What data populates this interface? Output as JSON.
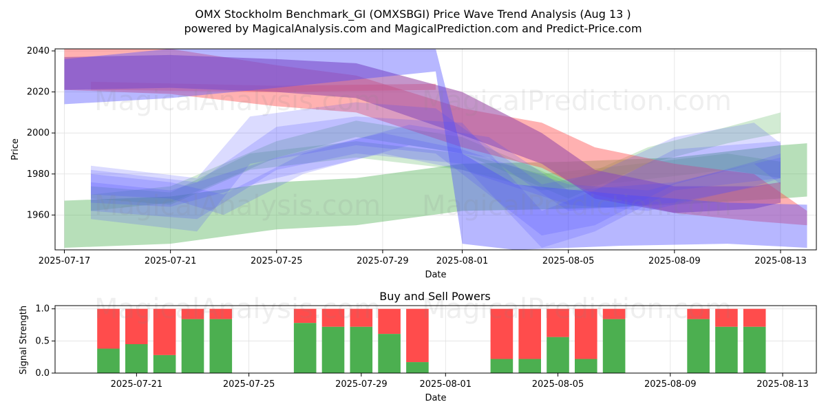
{
  "header": {
    "title": "OMX Stockholm Benchmark_GI (OMXSBGI) Price Wave Trend Analysis (Aug 13 )",
    "subtitle": "powered by MagicalAnalysis.com and MagicalPrediction.com and Predict-Price.com"
  },
  "watermarks": {
    "top_left": "MagicalAnalysis.com",
    "top_right": "MagicalPrediction.com",
    "mid_left": "MagicalAnalysis.com",
    "mid_right": "MagicalPrediction.com",
    "bottom_left": "MagicalAnalysis.com",
    "bottom_right": "MagicalPrediction.com"
  },
  "colors": {
    "green_band": "#4caf50",
    "red_band": "#ff5252",
    "blue_band": "#4b4bff",
    "purple_band": "#9c4fa6",
    "buy": "#4caf50",
    "sell": "#ff4c4c"
  },
  "chart_data": [
    {
      "type": "area",
      "title": "",
      "xlabel": "Date",
      "ylabel": "Price",
      "xlim": [
        "2025-07-17",
        "2025-08-14"
      ],
      "ylim": [
        1943,
        2041
      ],
      "x_ticks": [
        "2025-07-17",
        "2025-07-21",
        "2025-07-25",
        "2025-07-29",
        "2025-08-01",
        "2025-08-05",
        "2025-08-09",
        "2025-08-13"
      ],
      "y_ticks": [
        1960,
        1980,
        2000,
        2020,
        2040
      ],
      "grid": true,
      "series": [
        {
          "color": "green",
          "opacity": 0.4,
          "points": [
            [
              "2025-07-17",
              1944,
              1967
            ],
            [
              "2025-07-21",
              1946,
              1969
            ],
            [
              "2025-07-25",
              1953,
              1976
            ],
            [
              "2025-07-28",
              1955,
              1978
            ],
            [
              "2025-08-01",
              1962,
              1985
            ],
            [
              "2025-08-05",
              1963,
              1986
            ],
            [
              "2025-08-09",
              1965,
              1988
            ],
            [
              "2025-08-13",
              1968,
              1994
            ],
            [
              "2025-08-14",
              1969,
              1995
            ]
          ]
        },
        {
          "color": "green",
          "opacity": 0.25,
          "points": [
            [
              "2025-07-18",
              1962,
              1970
            ],
            [
              "2025-07-21",
              1966,
              1974
            ],
            [
              "2025-07-25",
              1988,
              1996
            ],
            [
              "2025-07-28",
              1998,
              2006
            ],
            [
              "2025-08-01",
              1990,
              1998
            ],
            [
              "2025-08-05",
              1968,
              1976
            ],
            [
              "2025-08-08",
              1985,
              1993
            ],
            [
              "2025-08-11",
              1995,
              2003
            ],
            [
              "2025-08-13",
              2000,
              2010
            ]
          ]
        },
        {
          "color": "green",
          "opacity": 0.25,
          "points": [
            [
              "2025-07-18",
              1968,
              1974
            ],
            [
              "2025-07-21",
              1965,
              1971
            ],
            [
              "2025-07-24",
              1982,
              1990
            ],
            [
              "2025-07-28",
              1988,
              1996
            ],
            [
              "2025-08-01",
              1982,
              1990
            ],
            [
              "2025-08-04",
              1972,
              1980
            ],
            [
              "2025-08-07",
              1976,
              1984
            ],
            [
              "2025-08-11",
              1982,
              1990
            ],
            [
              "2025-08-13",
              1978,
              1986
            ]
          ]
        },
        {
          "color": "red",
          "opacity": 0.45,
          "points": [
            [
              "2025-07-17",
              2021,
              2041
            ],
            [
              "2025-07-21",
              2019,
              2041
            ],
            [
              "2025-07-25",
              2013,
              2033
            ],
            [
              "2025-07-28",
              2010,
              2028
            ],
            [
              "2025-08-01",
              1993,
              2012
            ],
            [
              "2025-08-04",
              1983,
              2005
            ],
            [
              "2025-08-06",
              1970,
              1993
            ],
            [
              "2025-08-09",
              1961,
              1985
            ],
            [
              "2025-08-12",
              1957,
              1980
            ],
            [
              "2025-08-14",
              1955,
              1962
            ]
          ]
        },
        {
          "color": "red",
          "opacity": 0.4,
          "points": [
            [
              "2025-07-18",
              2021,
              2025
            ],
            [
              "2025-07-25",
              2020,
              2023
            ],
            [
              "2025-07-31",
              2021,
              2024
            ]
          ]
        },
        {
          "color": "purple",
          "opacity": 0.6,
          "points": [
            [
              "2025-07-17",
              2021,
              2037
            ],
            [
              "2025-07-21",
              2022,
              2038
            ],
            [
              "2025-07-25",
              2020,
              2036
            ],
            [
              "2025-07-28",
              2017,
              2034
            ],
            [
              "2025-08-01",
              1999,
              2020
            ],
            [
              "2025-08-04",
              1985,
              2000
            ],
            [
              "2025-08-06",
              1968,
              1982
            ],
            [
              "2025-08-09",
              1961,
              1974
            ],
            [
              "2025-08-12",
              1963,
              1974
            ],
            [
              "2025-08-13",
              1966,
              1976
            ]
          ]
        },
        {
          "color": "blue",
          "opacity": 0.4,
          "points": [
            [
              "2025-07-17",
              2014,
              2036
            ],
            [
              "2025-07-21",
              2017,
              2041
            ],
            [
              "2025-07-25",
              2022,
              2041
            ],
            [
              "2025-07-31",
              2030,
              2041
            ],
            [
              "2025-08-01",
              1946,
              1990
            ],
            [
              "2025-08-03",
              1943,
              1975
            ],
            [
              "2025-08-07",
              1945,
              1970
            ],
            [
              "2025-08-11",
              1946,
              1966
            ],
            [
              "2025-08-14",
              1944,
              1965
            ]
          ]
        },
        {
          "color": "blue",
          "opacity": 0.2,
          "points": [
            [
              "2025-07-18",
              1958,
              1984
            ],
            [
              "2025-07-22",
              1952,
              1978
            ],
            [
              "2025-07-24",
              1985,
              2008
            ],
            [
              "2025-07-28",
              1994,
              2015
            ],
            [
              "2025-07-31",
              1990,
              2012
            ],
            [
              "2025-08-04",
              1950,
              1975
            ],
            [
              "2025-08-06",
              1955,
              1980
            ],
            [
              "2025-08-09",
              1975,
              1998
            ],
            [
              "2025-08-12",
              1985,
              2005
            ],
            [
              "2025-08-13",
              1975,
              1995
            ]
          ]
        },
        {
          "color": "blue",
          "opacity": 0.2,
          "points": [
            [
              "2025-07-18",
              1962,
              1982
            ],
            [
              "2025-07-22",
              1958,
              1976
            ],
            [
              "2025-07-25",
              1982,
              2003
            ],
            [
              "2025-07-28",
              1990,
              2008
            ],
            [
              "2025-08-01",
              1985,
              2005
            ],
            [
              "2025-08-04",
              1944,
              1962
            ],
            [
              "2025-08-06",
              1952,
              1972
            ],
            [
              "2025-08-09",
              1972,
              1992
            ],
            [
              "2025-08-13",
              1978,
              1996
            ]
          ]
        },
        {
          "color": "blue",
          "opacity": 0.2,
          "points": [
            [
              "2025-07-18",
              1966,
              1976
            ],
            [
              "2025-07-21",
              1964,
              1972
            ],
            [
              "2025-07-25",
              1978,
              1988
            ],
            [
              "2025-07-29",
              1990,
              2000
            ],
            [
              "2025-08-01",
              1982,
              1992
            ],
            [
              "2025-08-05",
              1965,
              1975
            ],
            [
              "2025-08-08",
              1962,
              1972
            ],
            [
              "2025-08-12",
              1974,
              1986
            ],
            [
              "2025-08-13",
              1978,
              1990
            ]
          ]
        },
        {
          "color": "blue",
          "opacity": 0.2,
          "points": [
            [
              "2025-07-18",
              1970,
              1980
            ],
            [
              "2025-07-21",
              1968,
              1976
            ],
            [
              "2025-07-23",
              1960,
              1970
            ],
            [
              "2025-07-26",
              1980,
              1990
            ],
            [
              "2025-07-30",
              1994,
              2004
            ],
            [
              "2025-08-02",
              1988,
              1998
            ],
            [
              "2025-08-05",
              1962,
              1972
            ],
            [
              "2025-08-09",
              1966,
              1976
            ],
            [
              "2025-08-13",
              1976,
              1988
            ]
          ]
        }
      ]
    },
    {
      "type": "bar",
      "title": "Buy and Sell Powers",
      "xlabel": "Date",
      "ylabel": "Signal Strength",
      "xlim": [
        "2025-07-18",
        "2025-08-14"
      ],
      "ylim": [
        0,
        1.05
      ],
      "x_ticks": [
        "2025-07-21",
        "2025-07-25",
        "2025-07-29",
        "2025-08-01",
        "2025-08-05",
        "2025-08-09",
        "2025-08-13"
      ],
      "y_ticks": [
        0.0,
        0.5,
        1.0
      ],
      "grid": true,
      "series": [
        {
          "name": "",
          "color": "green",
          "values_key": "buy"
        },
        {
          "name": "",
          "color": "red",
          "values_key": "sell"
        }
      ],
      "bars": [
        {
          "date": "2025-07-20",
          "buy": 0.38
        },
        {
          "date": "2025-07-21",
          "buy": 0.45
        },
        {
          "date": "2025-07-22",
          "buy": 0.28
        },
        {
          "date": "2025-07-23",
          "buy": 0.84
        },
        {
          "date": "2025-07-24",
          "buy": 0.84
        },
        {
          "date": "2025-07-27",
          "buy": 0.78
        },
        {
          "date": "2025-07-28",
          "buy": 0.72
        },
        {
          "date": "2025-07-29",
          "buy": 0.72
        },
        {
          "date": "2025-07-30",
          "buy": 0.61
        },
        {
          "date": "2025-07-31",
          "buy": 0.17
        },
        {
          "date": "2025-08-03",
          "buy": 0.22
        },
        {
          "date": "2025-08-04",
          "buy": 0.22
        },
        {
          "date": "2025-08-05",
          "buy": 0.56
        },
        {
          "date": "2025-08-06",
          "buy": 0.22
        },
        {
          "date": "2025-08-07",
          "buy": 0.84
        },
        {
          "date": "2025-08-10",
          "buy": 0.84
        },
        {
          "date": "2025-08-11",
          "buy": 0.72
        },
        {
          "date": "2025-08-12",
          "buy": 0.72
        }
      ]
    }
  ]
}
